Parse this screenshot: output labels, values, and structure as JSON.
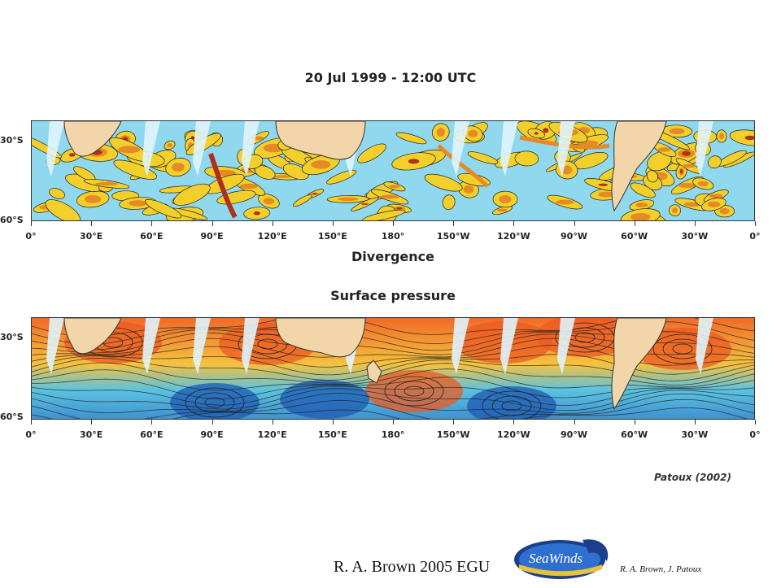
{
  "figure": {
    "title": "20 Jul 1999 - 12:00 UTC",
    "top_panel_caption": "Divergence",
    "bottom_panel_caption": "Surface pressure",
    "credit": "Patoux (2002)",
    "lon_ticks": [
      "0°",
      "30°E",
      "60°E",
      "90°E",
      "120°E",
      "150°E",
      "180°",
      "150°W",
      "120°W",
      "90°W",
      "60°W",
      "30°W",
      "0°"
    ],
    "lat_ticks": [
      "30°S",
      "60°S"
    ]
  },
  "footer": {
    "left_text": "R. A. Brown 2005  EGU",
    "logo_text": "SeaWinds",
    "right_text": "R. A. Brown,  J. Patoux"
  },
  "colors": {
    "ocean": "#8fd8ee",
    "land": "#f2d5a8",
    "divergence_yellow": "#f2cf2a",
    "divergence_orange": "#e58a25",
    "divergence_red": "#b03018",
    "pressure_high": "#f06a28",
    "pressure_low": "#1f5fb5",
    "gap": "#e0f4fb"
  }
}
